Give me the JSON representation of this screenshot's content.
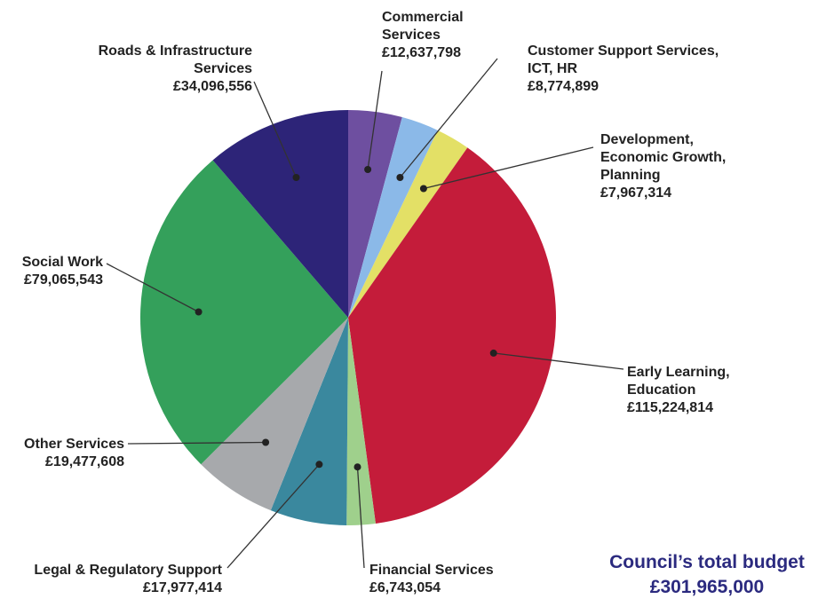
{
  "chart_data": {
    "type": "pie",
    "slices": [
      {
        "label": [
          "Commercial",
          "Services"
        ],
        "value_text": "£12,637,798",
        "value": 12637798,
        "color": "#6e4fa0"
      },
      {
        "label": [
          "Customer Support Services,",
          "ICT, HR"
        ],
        "value_text": "£8,774,899",
        "value": 8774899,
        "color": "#8bb9e8"
      },
      {
        "label": [
          "Development,",
          "Economic Growth,",
          "Planning"
        ],
        "value_text": "£7,967,314",
        "value": 7967314,
        "color": "#e3e066"
      },
      {
        "label": [
          "Early Learning,",
          "Education"
        ],
        "value_text": "£115,224,814",
        "value": 115224814,
        "color": "#c41c3a"
      },
      {
        "label": [
          "Financial Services"
        ],
        "value_text": "£6,743,054",
        "value": 6743054,
        "color": "#9fd08c"
      },
      {
        "label": [
          "Legal & Regulatory Support"
        ],
        "value_text": "£17,977,414",
        "value": 17977414,
        "color": "#3a889e"
      },
      {
        "label": [
          "Other Services"
        ],
        "value_text": "£19,477,608",
        "value": 19477608,
        "color": "#a7a9ac"
      },
      {
        "label": [
          "Social Work"
        ],
        "value_text": "£79,065,543",
        "value": 79065543,
        "color": "#34a05b"
      },
      {
        "label": [
          "Roads & Infrastructure",
          "Services"
        ],
        "value_text": "£34,096,556",
        "value": 34096556,
        "color": "#2d2478"
      }
    ]
  },
  "total": {
    "label": "Council’s total budget",
    "value": "£301,965,000",
    "color": "#2b2a7f"
  }
}
